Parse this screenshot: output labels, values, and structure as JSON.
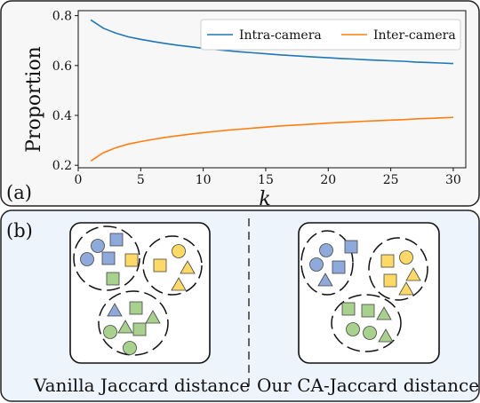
{
  "panel_a": {
    "label": "(a)",
    "chart_data": {
      "type": "line",
      "xlabel": "k",
      "ylabel": "Proportion",
      "xlim": [
        0,
        31
      ],
      "ylim": [
        0.19,
        0.82
      ],
      "xticks": [
        0,
        5,
        10,
        15,
        20,
        25,
        30
      ],
      "yticks": [
        0.2,
        0.4,
        0.6,
        0.8
      ],
      "ytick_labels": [
        "0.2",
        "0.4",
        "0.6",
        "0.8"
      ],
      "grid": false,
      "legend_position": "top-right",
      "x": [
        1,
        2,
        3,
        4,
        5,
        6,
        7,
        8,
        9,
        10,
        11,
        12,
        13,
        14,
        15,
        16,
        17,
        18,
        19,
        20,
        21,
        22,
        23,
        24,
        25,
        26,
        27,
        28,
        29,
        30
      ],
      "series": [
        {
          "name": "Intra-camera",
          "color": "#1f77b4",
          "values": [
            0.783,
            0.75,
            0.73,
            0.715,
            0.705,
            0.696,
            0.688,
            0.681,
            0.675,
            0.669,
            0.664,
            0.659,
            0.655,
            0.651,
            0.647,
            0.643,
            0.64,
            0.637,
            0.634,
            0.631,
            0.628,
            0.626,
            0.623,
            0.621,
            0.619,
            0.617,
            0.614,
            0.612,
            0.61,
            0.608
          ]
        },
        {
          "name": "Inter-camera",
          "color": "#ff7f0e",
          "values": [
            0.217,
            0.25,
            0.27,
            0.285,
            0.295,
            0.304,
            0.312,
            0.319,
            0.325,
            0.331,
            0.336,
            0.341,
            0.345,
            0.349,
            0.353,
            0.357,
            0.36,
            0.363,
            0.366,
            0.369,
            0.372,
            0.374,
            0.377,
            0.379,
            0.381,
            0.383,
            0.386,
            0.388,
            0.39,
            0.392
          ]
        }
      ]
    }
  },
  "panel_b": {
    "label": "(b)",
    "left_caption": "Vanilla Jaccard distance",
    "right_caption": "Our CA-Jaccard distance"
  },
  "colors": {
    "blue_shape": "#8ea9db",
    "yellow_shape": "#ffd966",
    "green_shape": "#a9d18e",
    "panel_b_bg": "#eef4fb"
  }
}
